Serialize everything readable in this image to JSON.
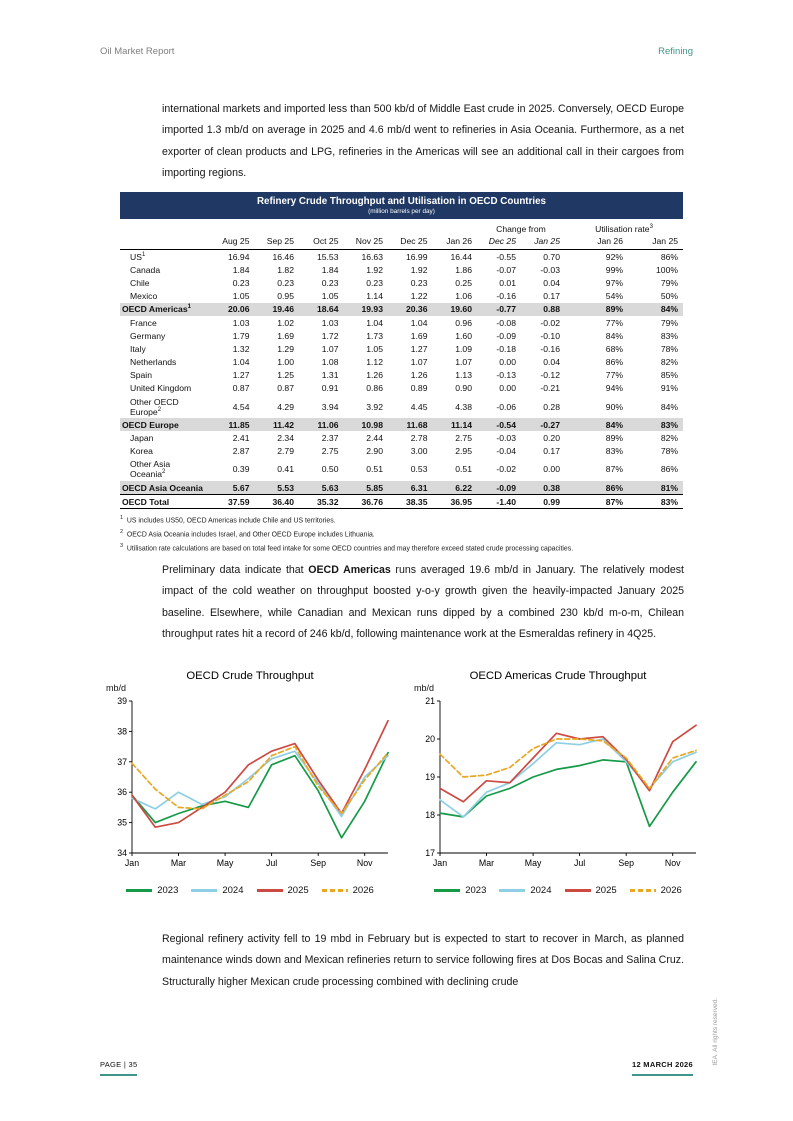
{
  "page": {
    "header_left": "Oil Market Report",
    "header_right": "Refining",
    "footer_page": "PAGE | 35",
    "footer_date": "12 MARCH 2026",
    "side_note": "IEA. All rights reserved."
  },
  "paragraphs": {
    "p1": "international markets and imported less than 500 kb/d of Middle East crude in 2025. Conversely, OECD Europe imported 1.3 mb/d on average in 2025 and 4.6 mb/d went to refineries in Asia Oceania. Furthermore, as a net exporter of clean products and LPG, refineries in the Americas will see an additional call in their cargoes from importing regions.",
    "p2_pre": "Preliminary data indicate that ",
    "p2_bold": "OECD Americas",
    "p2_post": " runs averaged 19.6 mb/d in January. The relatively modest impact of the cold weather on throughput boosted y-o-y growth given the heavily-impacted January 2025 baseline. Elsewhere, while Canadian and Mexican runs dipped by a combined 230 kb/d m-o-m, Chilean throughput rates hit a record of 246 kb/d, following maintenance work at the Esmeraldas refinery in 4Q25.",
    "p3": "Regional refinery activity fell to 19 mbd in February but is expected to start to recover in March, as planned maintenance winds down and Mexican refineries return to service following fires at Dos Bocas and Salina Cruz. Structurally higher Mexican crude processing combined with declining crude"
  },
  "table": {
    "title": "Refinery Crude Throughput and Utilisation in OECD Countries",
    "subtitle": "(million barrels per day)",
    "months": [
      "Aug 25",
      "Sep 25",
      "Oct 25",
      "Nov 25",
      "Dec 25",
      "Jan 26"
    ],
    "group_change": "Change from",
    "group_util": "Utilisation rate",
    "group_util_sup": "3",
    "change_cols": [
      "Dec 25",
      "Jan 25"
    ],
    "util_cols": [
      "Jan 26",
      "Jan 25"
    ],
    "rows": [
      {
        "label": "US",
        "sup": "1",
        "style": "country",
        "values": [
          "16.94",
          "16.46",
          "15.53",
          "16.63",
          "16.99",
          "16.44",
          "-0.55",
          "0.70",
          "92%",
          "86%"
        ]
      },
      {
        "label": "Canada",
        "style": "country",
        "values": [
          "1.84",
          "1.82",
          "1.84",
          "1.92",
          "1.92",
          "1.86",
          "-0.07",
          "-0.03",
          "99%",
          "100%"
        ]
      },
      {
        "label": "Chile",
        "style": "country",
        "values": [
          "0.23",
          "0.23",
          "0.23",
          "0.23",
          "0.23",
          "0.25",
          "0.01",
          "0.04",
          "97%",
          "79%"
        ]
      },
      {
        "label": "Mexico",
        "style": "country",
        "values": [
          "1.05",
          "0.95",
          "1.05",
          "1.14",
          "1.22",
          "1.06",
          "-0.16",
          "0.17",
          "54%",
          "50%"
        ]
      },
      {
        "label": "OECD Americas",
        "sup": "1",
        "style": "subtotal",
        "values": [
          "20.06",
          "19.46",
          "18.64",
          "19.93",
          "20.36",
          "19.60",
          "-0.77",
          "0.88",
          "89%",
          "84%"
        ]
      },
      {
        "label": "France",
        "style": "country",
        "values": [
          "1.03",
          "1.02",
          "1.03",
          "1.04",
          "1.04",
          "0.96",
          "-0.08",
          "-0.02",
          "77%",
          "79%"
        ]
      },
      {
        "label": "Germany",
        "style": "country",
        "values": [
          "1.79",
          "1.69",
          "1.72",
          "1.73",
          "1.69",
          "1.60",
          "-0.09",
          "-0.10",
          "84%",
          "83%"
        ]
      },
      {
        "label": "Italy",
        "style": "country",
        "values": [
          "1.32",
          "1.29",
          "1.07",
          "1.05",
          "1.27",
          "1.09",
          "-0.18",
          "-0.16",
          "68%",
          "78%"
        ]
      },
      {
        "label": "Netherlands",
        "style": "country",
        "values": [
          "1.04",
          "1.00",
          "1.08",
          "1.12",
          "1.07",
          "1.07",
          "0.00",
          "0.04",
          "86%",
          "82%"
        ]
      },
      {
        "label": "Spain",
        "style": "country",
        "values": [
          "1.27",
          "1.25",
          "1.31",
          "1.26",
          "1.26",
          "1.13",
          "-0.13",
          "-0.12",
          "77%",
          "85%"
        ]
      },
      {
        "label": "United Kingdom",
        "style": "country",
        "values": [
          "0.87",
          "0.87",
          "0.91",
          "0.86",
          "0.89",
          "0.90",
          "0.00",
          "-0.21",
          "94%",
          "91%"
        ]
      },
      {
        "label": "Other OECD Europe",
        "sup": "2",
        "style": "country",
        "values": [
          "4.54",
          "4.29",
          "3.94",
          "3.92",
          "4.45",
          "4.38",
          "-0.06",
          "0.28",
          "90%",
          "84%"
        ]
      },
      {
        "label": "OECD Europe",
        "style": "subtotal",
        "values": [
          "11.85",
          "11.42",
          "11.06",
          "10.98",
          "11.68",
          "11.14",
          "-0.54",
          "-0.27",
          "84%",
          "83%"
        ]
      },
      {
        "label": "Japan",
        "style": "country",
        "values": [
          "2.41",
          "2.34",
          "2.37",
          "2.44",
          "2.78",
          "2.75",
          "-0.03",
          "0.20",
          "89%",
          "82%"
        ]
      },
      {
        "label": "Korea",
        "style": "country",
        "values": [
          "2.87",
          "2.79",
          "2.75",
          "2.90",
          "3.00",
          "2.95",
          "-0.04",
          "0.17",
          "83%",
          "78%"
        ]
      },
      {
        "label": "Other Asia Oceania",
        "sup": "2",
        "style": "country",
        "values": [
          "0.39",
          "0.41",
          "0.50",
          "0.51",
          "0.53",
          "0.51",
          "-0.02",
          "0.00",
          "87%",
          "86%"
        ]
      },
      {
        "label": "OECD Asia Oceania",
        "style": "subtotal",
        "values": [
          "5.67",
          "5.53",
          "5.63",
          "5.85",
          "6.31",
          "6.22",
          "-0.09",
          "0.38",
          "86%",
          "81%"
        ]
      },
      {
        "label": "OECD Total",
        "style": "total",
        "values": [
          "37.59",
          "36.40",
          "35.32",
          "36.76",
          "38.35",
          "36.95",
          "-1.40",
          "0.99",
          "87%",
          "83%"
        ]
      }
    ],
    "footnotes": [
      {
        "sup": "1",
        "text": "US includes US50, OECD Americas include Chile and US territories."
      },
      {
        "sup": "2",
        "text": "OECD Asia Oceania includes Israel, and Other OECD Europe includes Lithuania."
      },
      {
        "sup": "3",
        "text": "Utilisation rate calculations are based on total feed intake for some OECD countries and may therefore exceed stated crude processing capacities."
      }
    ]
  },
  "chart_data": [
    {
      "type": "line",
      "title": "OECD Crude Throughput",
      "ylabel": "mb/d",
      "ylim": [
        34,
        39
      ],
      "yticks": [
        34,
        35,
        36,
        37,
        38,
        39
      ],
      "x": [
        "Jan",
        "Feb",
        "Mar",
        "Apr",
        "May",
        "Jun",
        "Jul",
        "Aug",
        "Sep",
        "Oct",
        "Nov",
        "Dec"
      ],
      "xticks": [
        "Jan",
        "Mar",
        "May",
        "Jul",
        "Sep",
        "Nov"
      ],
      "grid": false,
      "legend_position": "bottom",
      "series": [
        {
          "name": "2023",
          "color": "#159a48",
          "dash": false,
          "values": [
            35.9,
            35.0,
            35.3,
            35.55,
            35.7,
            35.5,
            36.9,
            37.2,
            36.05,
            34.5,
            35.7,
            37.3
          ]
        },
        {
          "name": "2024",
          "color": "#8ecfe4",
          "dash": false,
          "values": [
            35.8,
            35.45,
            36.0,
            35.6,
            35.85,
            36.45,
            37.1,
            37.35,
            36.3,
            35.2,
            36.5,
            37.2
          ]
        },
        {
          "name": "2025",
          "color": "#cc4a42",
          "dash": false,
          "values": [
            35.9,
            34.85,
            35.0,
            35.5,
            36.0,
            36.9,
            37.35,
            37.6,
            36.4,
            35.3,
            36.75,
            38.35
          ]
        },
        {
          "name": "2026",
          "color": "#e9a822",
          "dash": true,
          "values": [
            36.95,
            36.1,
            35.5,
            35.45,
            35.9,
            36.35,
            37.2,
            37.5,
            36.2,
            35.3,
            36.4,
            37.3
          ]
        }
      ]
    },
    {
      "type": "line",
      "title": "OECD Americas Crude Throughput",
      "ylabel": "mb/d",
      "ylim": [
        17,
        21
      ],
      "yticks": [
        17,
        18,
        19,
        20,
        21
      ],
      "x": [
        "Jan",
        "Feb",
        "Mar",
        "Apr",
        "May",
        "Jun",
        "Jul",
        "Aug",
        "Sep",
        "Oct",
        "Nov",
        "Dec"
      ],
      "xticks": [
        "Jan",
        "Mar",
        "May",
        "Jul",
        "Sep",
        "Nov"
      ],
      "grid": false,
      "legend_position": "bottom",
      "series": [
        {
          "name": "2023",
          "color": "#159a48",
          "dash": false,
          "values": [
            18.05,
            17.95,
            18.5,
            18.7,
            19.0,
            19.2,
            19.3,
            19.45,
            19.4,
            17.7,
            18.6,
            19.4
          ]
        },
        {
          "name": "2024",
          "color": "#8ecfe4",
          "dash": false,
          "values": [
            18.4,
            17.95,
            18.6,
            18.85,
            19.35,
            19.9,
            19.85,
            20.0,
            19.4,
            18.7,
            19.4,
            19.65
          ]
        },
        {
          "name": "2025",
          "color": "#cc4a42",
          "dash": false,
          "values": [
            18.7,
            18.35,
            18.9,
            18.85,
            19.5,
            20.15,
            20.0,
            20.06,
            19.46,
            18.64,
            19.93,
            20.36
          ]
        },
        {
          "name": "2026",
          "color": "#e9a822",
          "dash": true,
          "values": [
            19.6,
            19.0,
            19.05,
            19.25,
            19.75,
            20.0,
            20.0,
            19.95,
            19.5,
            18.7,
            19.5,
            19.7
          ]
        }
      ]
    }
  ],
  "colors": {
    "accent_teal": "#3f958a",
    "table_header_bg": "#1f3864",
    "subtotal_row_bg": "#d9d9d9",
    "series_2023": "#159a48",
    "series_2024": "#8ecfe4",
    "series_2025": "#cc4a42",
    "series_2026": "#e9a822"
  }
}
